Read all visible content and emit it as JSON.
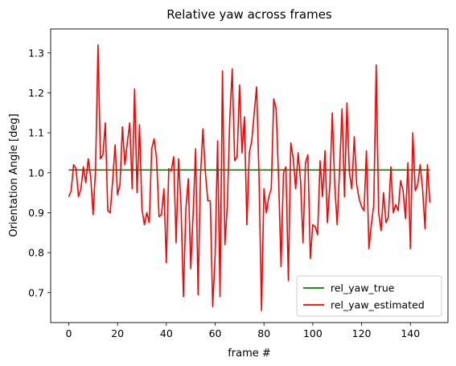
{
  "chart_data": {
    "type": "line",
    "title": "Relative yaw across frames",
    "xlabel": "frame #",
    "ylabel": "Orientation Angle [deg]",
    "xlim": [
      -7.4,
      155.4
    ],
    "ylim": [
      0.625,
      1.36
    ],
    "xticks": [
      0,
      20,
      40,
      60,
      80,
      100,
      120,
      140
    ],
    "yticks": [
      0.7,
      0.8,
      0.9,
      1.0,
      1.1,
      1.2,
      1.3
    ],
    "ytick_labels": [
      "0.7",
      "0.8",
      "0.9",
      "1.0",
      "1.1",
      "1.2",
      "1.3"
    ],
    "grid": false,
    "legend_position": "lower right",
    "series": [
      {
        "name": "rel_yaw_true",
        "color": "#008000",
        "x": [
          0,
          148
        ],
        "y": [
          1.007,
          1.007
        ]
      },
      {
        "name": "rel_yaw_estimated",
        "color": "#ff0000",
        "x": [
          0,
          1,
          2,
          3,
          4,
          5,
          6,
          7,
          8,
          9,
          10,
          11,
          12,
          13,
          14,
          15,
          16,
          17,
          18,
          19,
          20,
          21,
          22,
          23,
          24,
          25,
          26,
          27,
          28,
          29,
          30,
          31,
          32,
          33,
          34,
          35,
          36,
          37,
          38,
          39,
          40,
          41,
          42,
          43,
          44,
          45,
          46,
          47,
          48,
          49,
          50,
          51,
          52,
          53,
          54,
          55,
          56,
          57,
          58,
          59,
          60,
          61,
          62,
          63,
          64,
          65,
          66,
          67,
          68,
          69,
          70,
          71,
          72,
          73,
          74,
          75,
          76,
          77,
          78,
          79,
          80,
          81,
          82,
          83,
          84,
          85,
          86,
          87,
          88,
          89,
          90,
          91,
          92,
          93,
          94,
          95,
          96,
          97,
          98,
          99,
          100,
          101,
          102,
          103,
          104,
          105,
          106,
          107,
          108,
          109,
          110,
          111,
          112,
          113,
          114,
          115,
          116,
          117,
          118,
          119,
          120,
          121,
          122,
          123,
          124,
          125,
          126,
          127,
          128,
          129,
          130,
          131,
          132,
          133,
          134,
          135,
          136,
          137,
          138,
          139,
          140,
          141,
          142,
          143,
          144,
          145,
          146,
          147,
          148
        ],
        "y": [
          0.94,
          0.955,
          1.02,
          1.01,
          0.94,
          0.96,
          1.015,
          0.975,
          1.035,
          0.99,
          0.895,
          1.01,
          1.32,
          1.035,
          1.045,
          1.125,
          0.905,
          0.9,
          0.98,
          1.07,
          0.945,
          0.97,
          1.115,
          1.02,
          1.075,
          1.125,
          0.96,
          1.21,
          0.95,
          1.12,
          0.91,
          0.87,
          0.9,
          0.875,
          1.06,
          1.085,
          1.035,
          0.89,
          0.895,
          0.96,
          0.775,
          1.01,
          1.005,
          1.04,
          0.825,
          1.035,
          0.92,
          0.69,
          0.91,
          0.985,
          0.76,
          0.9,
          1.06,
          0.695,
          0.995,
          1.11,
          1.0,
          0.93,
          0.93,
          0.665,
          0.795,
          1.08,
          0.69,
          1.255,
          0.82,
          0.92,
          1.135,
          1.26,
          1.03,
          1.04,
          1.22,
          1.05,
          1.14,
          0.87,
          1.05,
          1.08,
          1.15,
          1.215,
          0.985,
          0.655,
          0.96,
          0.9,
          0.94,
          0.96,
          1.185,
          1.16,
          0.985,
          0.765,
          1.0,
          1.015,
          0.73,
          1.075,
          1.035,
          0.96,
          1.05,
          0.98,
          0.825,
          1.025,
          1.045,
          0.785,
          0.87,
          0.865,
          0.845,
          1.03,
          0.94,
          1.055,
          0.875,
          0.97,
          1.15,
          0.97,
          0.87,
          1.01,
          1.16,
          0.94,
          1.175,
          1.0,
          0.96,
          1.09,
          0.97,
          0.935,
          0.915,
          0.905,
          1.055,
          0.81,
          0.87,
          0.92,
          1.27,
          0.9,
          0.855,
          0.95,
          0.875,
          0.89,
          1.015,
          0.9,
          0.92,
          0.905,
          0.98,
          0.955,
          0.885,
          1.025,
          0.81,
          1.1,
          0.955,
          0.97,
          1.02,
          0.96,
          0.86,
          1.02,
          0.925
        ]
      }
    ]
  }
}
